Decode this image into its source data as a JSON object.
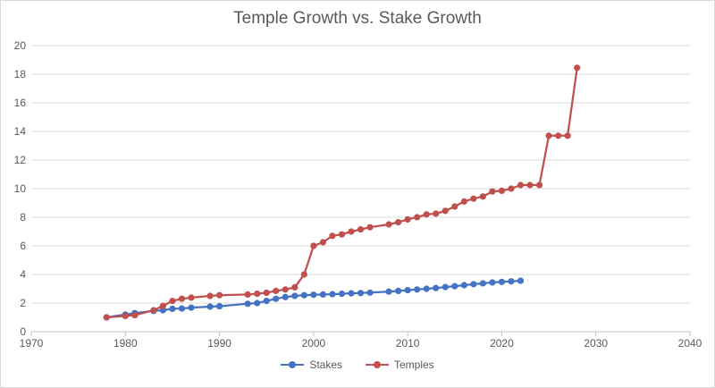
{
  "chart_data": {
    "type": "scatter",
    "mode": "lines+markers",
    "title": "Temple Growth vs. Stake Growth",
    "xlabel": "",
    "ylabel": "",
    "xlim": [
      1970,
      2040
    ],
    "ylim": [
      0,
      20
    ],
    "x_ticks": [
      1970,
      1980,
      1990,
      2000,
      2010,
      2020,
      2030,
      2040
    ],
    "y_ticks": [
      0,
      2,
      4,
      6,
      8,
      10,
      12,
      14,
      16,
      18,
      20
    ],
    "grid": "horizontal",
    "legend_position": "bottom",
    "series": [
      {
        "name": "Stakes",
        "color": "#4472C4",
        "points": [
          [
            1978,
            1.0
          ],
          [
            1980,
            1.2
          ],
          [
            1981,
            1.3
          ],
          [
            1983,
            1.45
          ],
          [
            1984,
            1.5
          ],
          [
            1985,
            1.6
          ],
          [
            1986,
            1.62
          ],
          [
            1987,
            1.68
          ],
          [
            1989,
            1.75
          ],
          [
            1990,
            1.78
          ],
          [
            1993,
            1.95
          ],
          [
            1994,
            2.0
          ],
          [
            1995,
            2.15
          ],
          [
            1996,
            2.3
          ],
          [
            1997,
            2.42
          ],
          [
            1998,
            2.5
          ],
          [
            1999,
            2.55
          ],
          [
            2000,
            2.58
          ],
          [
            2001,
            2.6
          ],
          [
            2002,
            2.62
          ],
          [
            2003,
            2.65
          ],
          [
            2004,
            2.68
          ],
          [
            2005,
            2.7
          ],
          [
            2006,
            2.73
          ],
          [
            2008,
            2.8
          ],
          [
            2009,
            2.85
          ],
          [
            2010,
            2.9
          ],
          [
            2011,
            2.95
          ],
          [
            2012,
            3.0
          ],
          [
            2013,
            3.05
          ],
          [
            2014,
            3.12
          ],
          [
            2015,
            3.18
          ],
          [
            2016,
            3.25
          ],
          [
            2017,
            3.32
          ],
          [
            2018,
            3.38
          ],
          [
            2019,
            3.44
          ],
          [
            2020,
            3.48
          ],
          [
            2021,
            3.52
          ],
          [
            2022,
            3.56
          ]
        ]
      },
      {
        "name": "Temples",
        "color": "#C0504D",
        "points": [
          [
            1978,
            1.0
          ],
          [
            1980,
            1.1
          ],
          [
            1981,
            1.15
          ],
          [
            1983,
            1.5
          ],
          [
            1984,
            1.8
          ],
          [
            1985,
            2.15
          ],
          [
            1986,
            2.3
          ],
          [
            1987,
            2.38
          ],
          [
            1989,
            2.5
          ],
          [
            1990,
            2.55
          ],
          [
            1993,
            2.6
          ],
          [
            1994,
            2.65
          ],
          [
            1995,
            2.72
          ],
          [
            1996,
            2.85
          ],
          [
            1997,
            2.95
          ],
          [
            1998,
            3.1
          ],
          [
            1999,
            4.0
          ],
          [
            2000,
            6.0
          ],
          [
            2001,
            6.25
          ],
          [
            2002,
            6.7
          ],
          [
            2003,
            6.8
          ],
          [
            2004,
            7.0
          ],
          [
            2005,
            7.15
          ],
          [
            2006,
            7.3
          ],
          [
            2008,
            7.5
          ],
          [
            2009,
            7.65
          ],
          [
            2010,
            7.85
          ],
          [
            2011,
            8.0
          ],
          [
            2012,
            8.2
          ],
          [
            2013,
            8.25
          ],
          [
            2014,
            8.45
          ],
          [
            2015,
            8.75
          ],
          [
            2016,
            9.1
          ],
          [
            2017,
            9.3
          ],
          [
            2018,
            9.45
          ],
          [
            2019,
            9.8
          ],
          [
            2020,
            9.85
          ],
          [
            2021,
            10.0
          ],
          [
            2022,
            10.25
          ],
          [
            2023,
            10.25
          ],
          [
            2024,
            10.25
          ],
          [
            2025,
            13.7
          ],
          [
            2026,
            13.7
          ],
          [
            2027,
            13.7
          ],
          [
            2028,
            18.45
          ]
        ]
      }
    ]
  }
}
